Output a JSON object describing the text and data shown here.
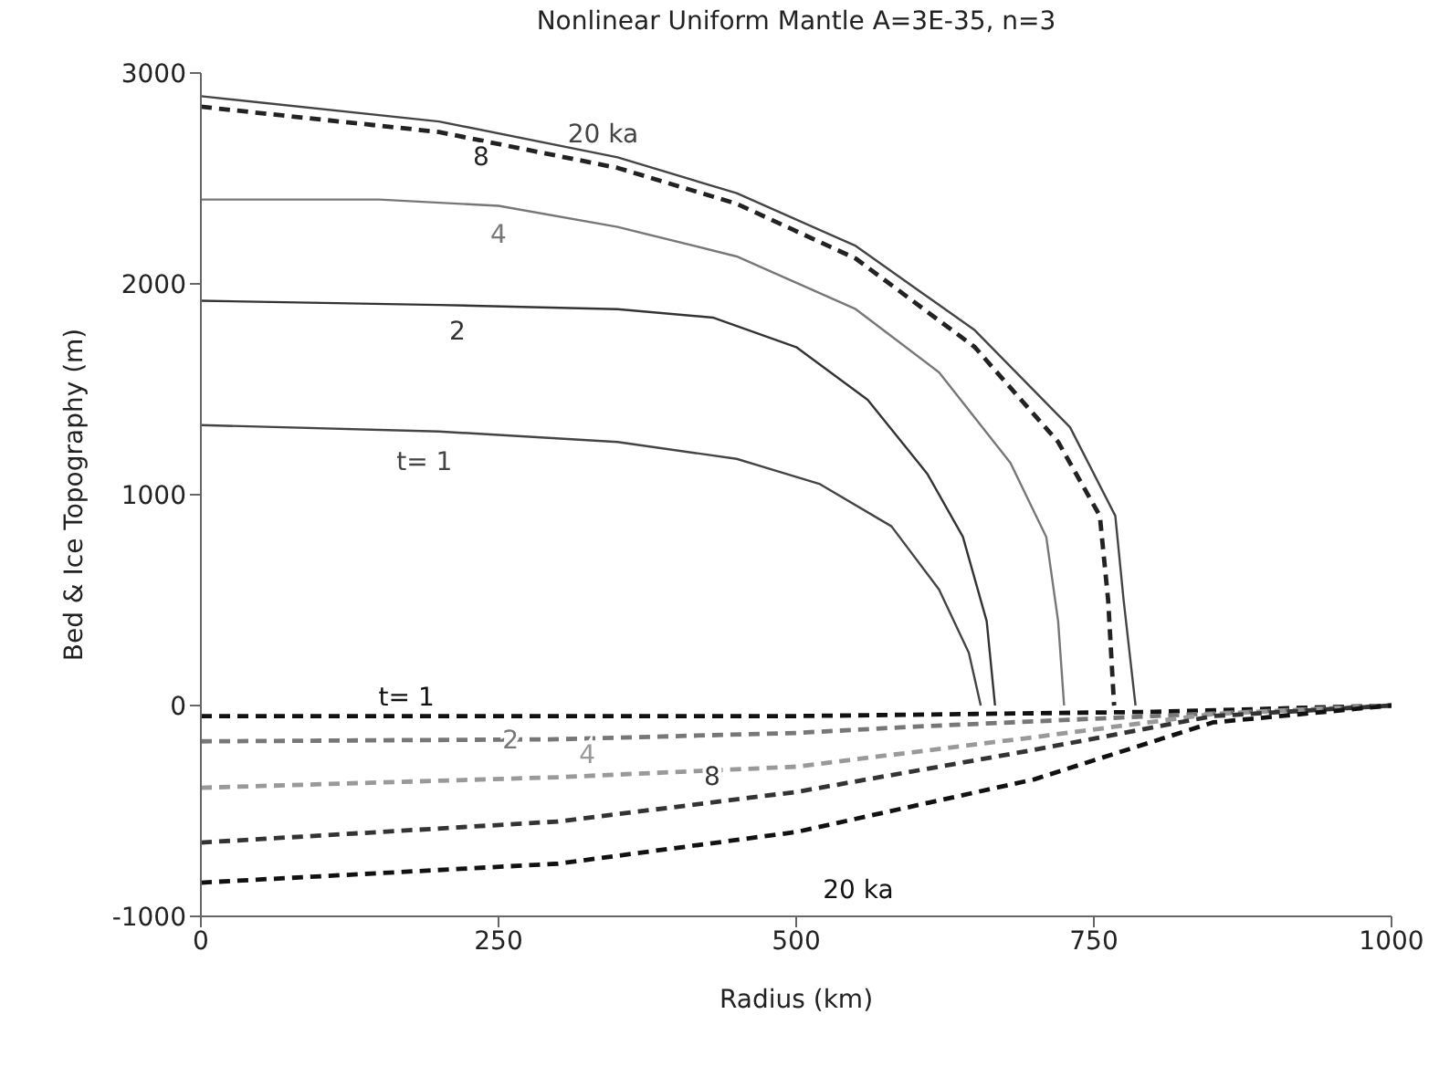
{
  "chart_data": {
    "type": "line",
    "title": "Nonlinear Uniform Mantle A=3E-35, n=3",
    "xlabel": "Radius (km)",
    "ylabel": "Bed & Ice Topography (m)",
    "xlim": [
      0,
      1000
    ],
    "xticks": [
      0,
      250,
      500,
      750,
      1000
    ],
    "ylim": [
      -1000,
      3000
    ],
    "yticks": [
      -1000,
      0,
      1000,
      2000,
      3000
    ],
    "grid": false,
    "legend": false,
    "marker": "none",
    "series": [
      {
        "name": "t= 1",
        "color": "#444444",
        "line_style": "solid",
        "x": [
          0,
          200,
          350,
          450,
          520,
          580,
          620,
          645,
          655
        ],
        "values": [
          1330,
          1300,
          1250,
          1170,
          1050,
          850,
          550,
          250,
          0
        ]
      },
      {
        "name": "2",
        "color": "#333333",
        "line_style": "solid",
        "x": [
          0,
          200,
          350,
          430,
          500,
          560,
          610,
          640,
          660,
          667
        ],
        "values": [
          1920,
          1900,
          1880,
          1840,
          1700,
          1450,
          1100,
          800,
          400,
          0
        ]
      },
      {
        "name": "4",
        "color": "#777777",
        "line_style": "solid",
        "x": [
          0,
          150,
          250,
          350,
          450,
          550,
          620,
          680,
          710,
          720,
          725
        ],
        "values": [
          2400,
          2400,
          2370,
          2270,
          2130,
          1880,
          1580,
          1150,
          800,
          400,
          0
        ]
      },
      {
        "name": "8",
        "color": "#222222",
        "line_style": "dashed",
        "x": [
          0,
          200,
          350,
          450,
          550,
          650,
          720,
          755,
          762,
          767
        ],
        "values": [
          2840,
          2720,
          2550,
          2380,
          2120,
          1700,
          1250,
          900,
          500,
          0
        ]
      },
      {
        "name": "20 ka",
        "color": "#444444",
        "line_style": "solid",
        "x": [
          0,
          200,
          350,
          450,
          550,
          650,
          730,
          768,
          775,
          785
        ],
        "values": [
          2890,
          2770,
          2600,
          2430,
          2180,
          1780,
          1320,
          900,
          500,
          0
        ]
      },
      {
        "name": "t= 1",
        "color": "#111111",
        "line_style": "dashed",
        "x": [
          0,
          300,
          500,
          650,
          800,
          1000
        ],
        "values": [
          -50,
          -50,
          -50,
          -40,
          -30,
          0
        ]
      },
      {
        "name": "2",
        "color": "#777777",
        "line_style": "dashed",
        "x": [
          0,
          300,
          500,
          600,
          800,
          1000
        ],
        "values": [
          -170,
          -160,
          -130,
          -100,
          -50,
          0
        ]
      },
      {
        "name": "4",
        "color": "#999999",
        "line_style": "dashed",
        "x": [
          0,
          300,
          500,
          700,
          850,
          1000
        ],
        "values": [
          -390,
          -340,
          -290,
          -150,
          -40,
          0
        ]
      },
      {
        "name": "8",
        "color": "#333333",
        "line_style": "dashed",
        "x": [
          0,
          300,
          500,
          700,
          850,
          1000
        ],
        "values": [
          -650,
          -550,
          -410,
          -210,
          -50,
          0
        ]
      },
      {
        "name": "20 ka",
        "color": "#111111",
        "line_style": "dashed",
        "x": [
          0,
          300,
          500,
          700,
          800,
          850,
          1000
        ],
        "values": [
          -840,
          -750,
          -600,
          -350,
          -170,
          -80,
          0
        ]
      }
    ]
  }
}
